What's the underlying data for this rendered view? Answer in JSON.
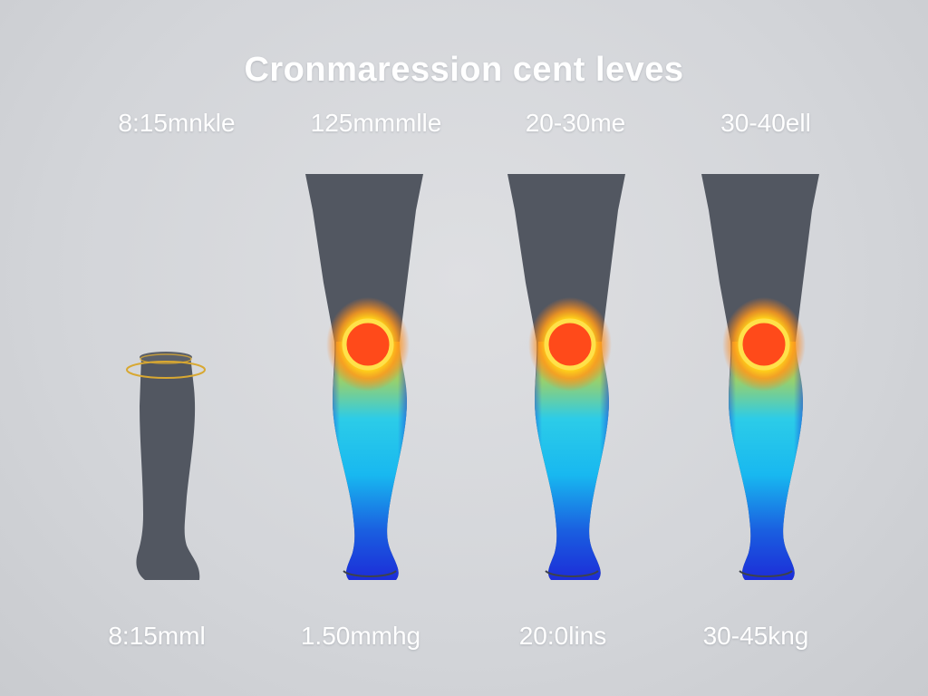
{
  "title": "Cronmaression cent leves",
  "columns": [
    {
      "top_label": "8:15mnkle",
      "bottom_label": "8:15mml"
    },
    {
      "top_label": "125mmmlle",
      "bottom_label": "1.50mmhg"
    },
    {
      "top_label": "20-30me",
      "bottom_label": "20:0lins"
    },
    {
      "top_label": "30-40ell",
      "bottom_label": "30-45kng"
    }
  ],
  "colors": {
    "background": "#d3d5d9",
    "leg": "#525761",
    "heat_hot": "#ff4a1a",
    "heat_warm": "#ffd21a",
    "heat_cool": "#18c8f0",
    "heat_cold": "#1c2bd8",
    "sock_band": "#d8a832"
  }
}
